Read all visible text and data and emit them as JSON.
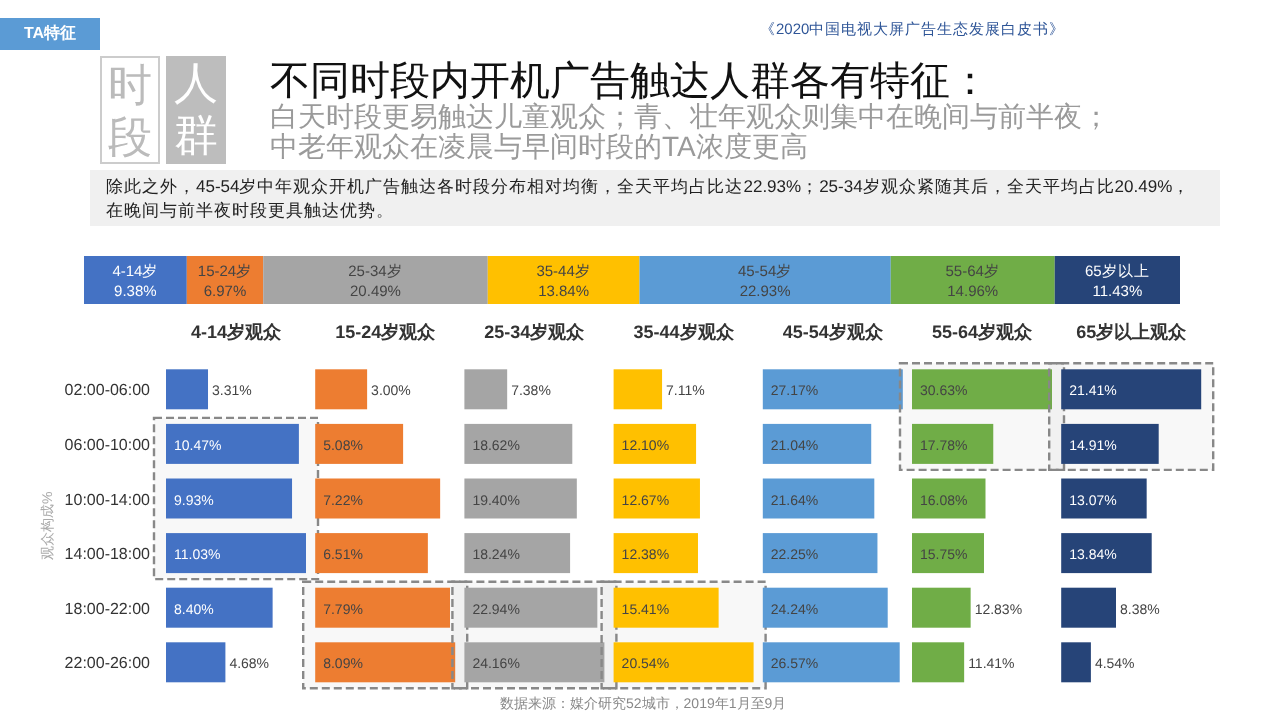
{
  "chart_data": [
    {
      "type": "bar",
      "orientation": "horizontal",
      "stacked": true,
      "tick_labels": false,
      "title": "不同时段内开机广告触达人群各有特征：",
      "subtitle": "白天时段更易触达儿童观众；青、壮年观众则集中在晚间与前半夜；中老年观众在凌晨与早间时段的TA浓度更高",
      "annotations": [
        "TA特征",
        "《2020中国电视大屏广告生态发展白皮书》",
        "时段",
        "人群",
        "除此之外，45-54岁中年观众开机广告触达各时段分布相对均衡，全天平均占比达22.93%；25-34岁观众紧随其后，全天平均占比20.49%，在晚间与前半夜时段更具触达优势。",
        "数据来源：媒介研究52城市，2019年1月至9月"
      ],
      "categories": [
        null
      ],
      "xlim": [
        0,
        100
      ],
      "series": [
        {
          "name": "4-14岁",
          "color": "#4472c4",
          "values": [
            9.38
          ],
          "value_labels": [
            "9.38%"
          ]
        },
        {
          "name": "15-24岁",
          "color": "#ed7d31",
          "values": [
            6.97
          ],
          "value_labels": [
            "6.97%"
          ]
        },
        {
          "name": "25-34岁",
          "color": "#a5a5a5",
          "values": [
            20.49
          ],
          "value_labels": [
            "20.49%"
          ]
        },
        {
          "name": "35-44岁",
          "color": "#ffc000",
          "values": [
            13.84
          ],
          "value_labels": [
            "13.84%"
          ]
        },
        {
          "name": "45-54岁",
          "color": "#5b9bd5",
          "values": [
            22.93
          ],
          "value_labels": [
            "22.93%"
          ]
        },
        {
          "name": "55-64岁",
          "color": "#70ad47",
          "values": [
            14.96
          ],
          "value_labels": [
            "14.96%"
          ]
        },
        {
          "name": "65岁以上",
          "color": "#264478",
          "values": [
            11.43
          ],
          "value_labels": [
            "11.43%"
          ]
        }
      ]
    },
    {
      "type": "bar",
      "orientation": "horizontal",
      "tick_labels": "y",
      "title": "4-14岁观众",
      "ylabel": "观众构成%",
      "categories": [
        "02:00-06:00",
        "06:00-10:00",
        "10:00-14:00",
        "14:00-18:00",
        "18:00-22:00",
        "22:00-26:00"
      ],
      "xlim": [
        0,
        11.03
      ],
      "bands": [
        {
          "axis": "y",
          "from": "06:00-10:00",
          "to": "14:00-18:00"
        }
      ],
      "series": [
        {
          "color": "#4472c4",
          "values": [
            3.31,
            10.47,
            9.93,
            11.03,
            8.4,
            4.68
          ],
          "value_labels": [
            "3.31%",
            "10.47%",
            "9.93%",
            "11.03%",
            "8.40%",
            "4.68%"
          ]
        }
      ]
    },
    {
      "type": "bar",
      "orientation": "horizontal",
      "tick_labels": false,
      "title": "15-24岁观众",
      "categories": [
        "02:00-06:00",
        "06:00-10:00",
        "10:00-14:00",
        "14:00-18:00",
        "18:00-22:00",
        "22:00-26:00"
      ],
      "xlim": [
        0,
        8.09
      ],
      "bands": [
        {
          "axis": "y",
          "from": "18:00-22:00",
          "to": "22:00-26:00"
        }
      ],
      "series": [
        {
          "color": "#ed7d31",
          "values": [
            3.0,
            5.08,
            7.22,
            6.51,
            7.79,
            8.09
          ],
          "value_labels": [
            "3.00%",
            "5.08%",
            "7.22%",
            "6.51%",
            "7.79%",
            "8.09%"
          ]
        }
      ]
    },
    {
      "type": "bar",
      "orientation": "horizontal",
      "tick_labels": false,
      "title": "25-34岁观众",
      "categories": [
        "02:00-06:00",
        "06:00-10:00",
        "10:00-14:00",
        "14:00-18:00",
        "18:00-22:00",
        "22:00-26:00"
      ],
      "xlim": [
        0,
        24.16
      ],
      "bands": [
        {
          "axis": "y",
          "from": "18:00-22:00",
          "to": "22:00-26:00"
        }
      ],
      "series": [
        {
          "color": "#a5a5a5",
          "values": [
            7.38,
            18.62,
            19.4,
            18.24,
            22.94,
            24.16
          ],
          "value_labels": [
            "7.38%",
            "18.62%",
            "19.40%",
            "18.24%",
            "22.94%",
            "24.16%"
          ]
        }
      ]
    },
    {
      "type": "bar",
      "orientation": "horizontal",
      "tick_labels": false,
      "title": "35-44岁观众",
      "categories": [
        "02:00-06:00",
        "06:00-10:00",
        "10:00-14:00",
        "14:00-18:00",
        "18:00-22:00",
        "22:00-26:00"
      ],
      "xlim": [
        0,
        20.54
      ],
      "bands": [
        {
          "axis": "y",
          "from": "18:00-22:00",
          "to": "22:00-26:00"
        }
      ],
      "series": [
        {
          "color": "#ffc000",
          "values": [
            7.11,
            12.1,
            12.67,
            12.38,
            15.41,
            20.54
          ],
          "value_labels": [
            "7.11%",
            "12.10%",
            "12.67%",
            "12.38%",
            "15.41%",
            "20.54%"
          ]
        }
      ]
    },
    {
      "type": "bar",
      "orientation": "horizontal",
      "tick_labels": false,
      "title": "45-54岁观众",
      "categories": [
        "02:00-06:00",
        "06:00-10:00",
        "10:00-14:00",
        "14:00-18:00",
        "18:00-22:00",
        "22:00-26:00"
      ],
      "xlim": [
        0,
        27.17
      ],
      "series": [
        {
          "color": "#5b9bd5",
          "values": [
            27.17,
            21.04,
            21.64,
            22.25,
            24.24,
            26.57
          ],
          "value_labels": [
            "27.17%",
            "21.04%",
            "21.64%",
            "22.25%",
            "24.24%",
            "26.57%"
          ]
        }
      ]
    },
    {
      "type": "bar",
      "orientation": "horizontal",
      "tick_labels": false,
      "title": "55-64岁观众",
      "categories": [
        "02:00-06:00",
        "06:00-10:00",
        "10:00-14:00",
        "14:00-18:00",
        "18:00-22:00",
        "22:00-26:00"
      ],
      "xlim": [
        0,
        30.63
      ],
      "bands": [
        {
          "axis": "y",
          "from": "02:00-06:00",
          "to": "06:00-10:00"
        }
      ],
      "series": [
        {
          "color": "#70ad47",
          "values": [
            30.63,
            17.78,
            16.08,
            15.75,
            12.83,
            11.41
          ],
          "value_labels": [
            "30.63%",
            "17.78%",
            "16.08%",
            "15.75%",
            "12.83%",
            "11.41%"
          ]
        }
      ]
    },
    {
      "type": "bar",
      "orientation": "horizontal",
      "tick_labels": false,
      "title": "65岁以上观众",
      "categories": [
        "02:00-06:00",
        "06:00-10:00",
        "10:00-14:00",
        "14:00-18:00",
        "18:00-22:00",
        "22:00-26:00"
      ],
      "xlim": [
        0,
        21.41
      ],
      "bands": [
        {
          "axis": "y",
          "from": "02:00-06:00",
          "to": "06:00-10:00"
        }
      ],
      "series": [
        {
          "color": "#264478",
          "values": [
            21.41,
            14.91,
            13.07,
            13.84,
            8.38,
            4.54
          ],
          "value_labels": [
            "21.41%",
            "14.91%",
            "13.07%",
            "13.84%",
            "8.38%",
            "4.54%"
          ]
        }
      ]
    }
  ]
}
